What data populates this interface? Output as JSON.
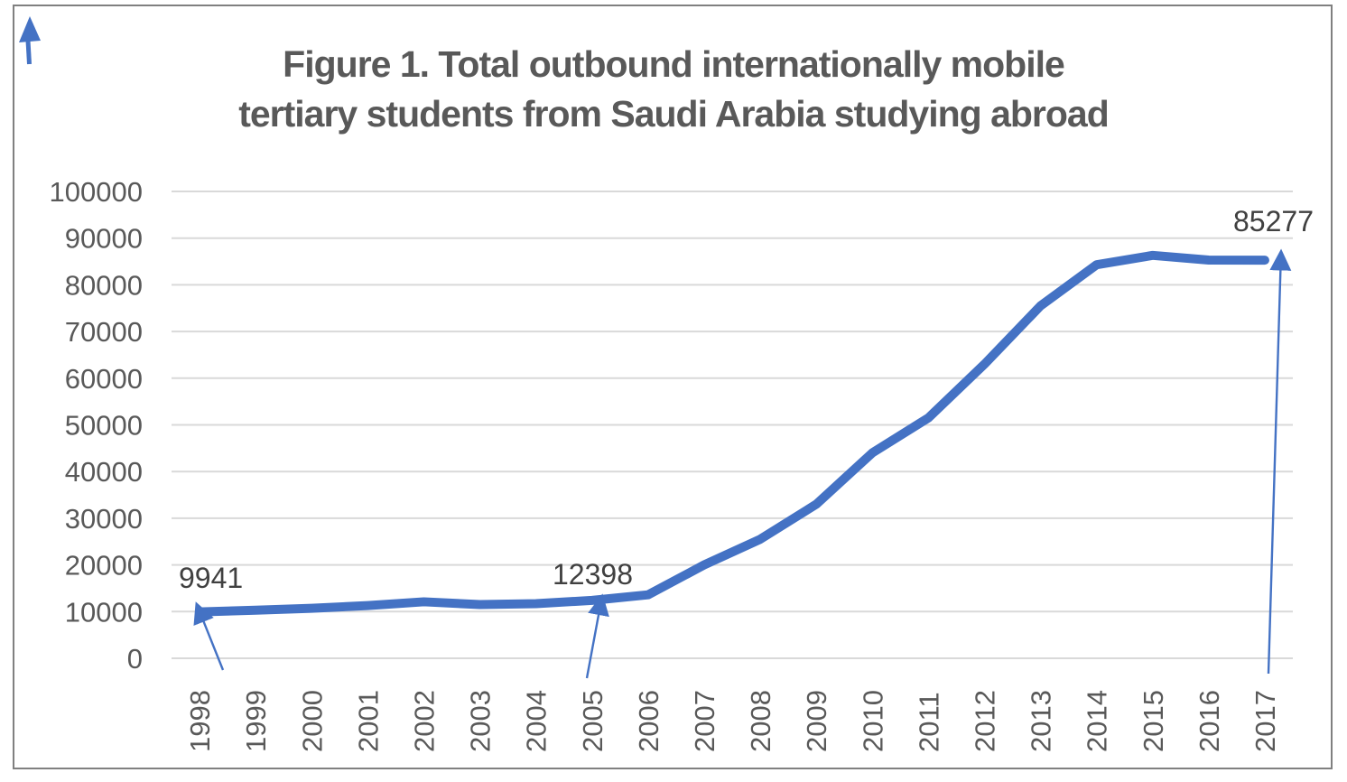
{
  "figure": {
    "title_line1": "Figure 1. Total outbound internationally mobile",
    "title_line2": "tertiary students from Saudi Arabia studying abroad"
  },
  "chart_data": {
    "type": "line",
    "title": "Figure 1. Total outbound internationally mobile tertiary students from Saudi Arabia studying abroad",
    "x": [
      "1998",
      "1999",
      "2000",
      "2001",
      "2002",
      "2003",
      "2004",
      "2005",
      "2006",
      "2007",
      "2008",
      "2009",
      "2010",
      "2011",
      "2012",
      "2013",
      "2014",
      "2015",
      "2016",
      "2017"
    ],
    "series": [
      {
        "name": "Total outbound internationally mobile tertiary students from Saudi Arabia",
        "values": [
          9941,
          10300,
          10700,
          11300,
          12100,
          11500,
          11700,
          12398,
          13600,
          20000,
          25500,
          33000,
          44000,
          51500,
          63000,
          75500,
          84300,
          86300,
          85300,
          85277
        ]
      }
    ],
    "xlabel": "",
    "ylabel": "",
    "ylim": [
      0,
      100000
    ],
    "y_tick_interval": 10000,
    "y_tick_labels": [
      "100000",
      "90000",
      "80000",
      "70000",
      "60000",
      "50000",
      "40000",
      "30000",
      "20000",
      "10000",
      "0"
    ],
    "grid": true,
    "legend_position": "none",
    "annotations": [
      {
        "label": "9941",
        "year": "1998",
        "value": 9941
      },
      {
        "label": "12398",
        "year": "2005",
        "value": 12398
      },
      {
        "label": "85277",
        "year": "2017",
        "value": 85277
      }
    ]
  },
  "colors": {
    "line": "#4472C4",
    "grid": "#D9D9D9",
    "axis_text": "#595959",
    "title_text": "#595959",
    "annotation_text": "#404040",
    "frame_border": "#808080"
  }
}
